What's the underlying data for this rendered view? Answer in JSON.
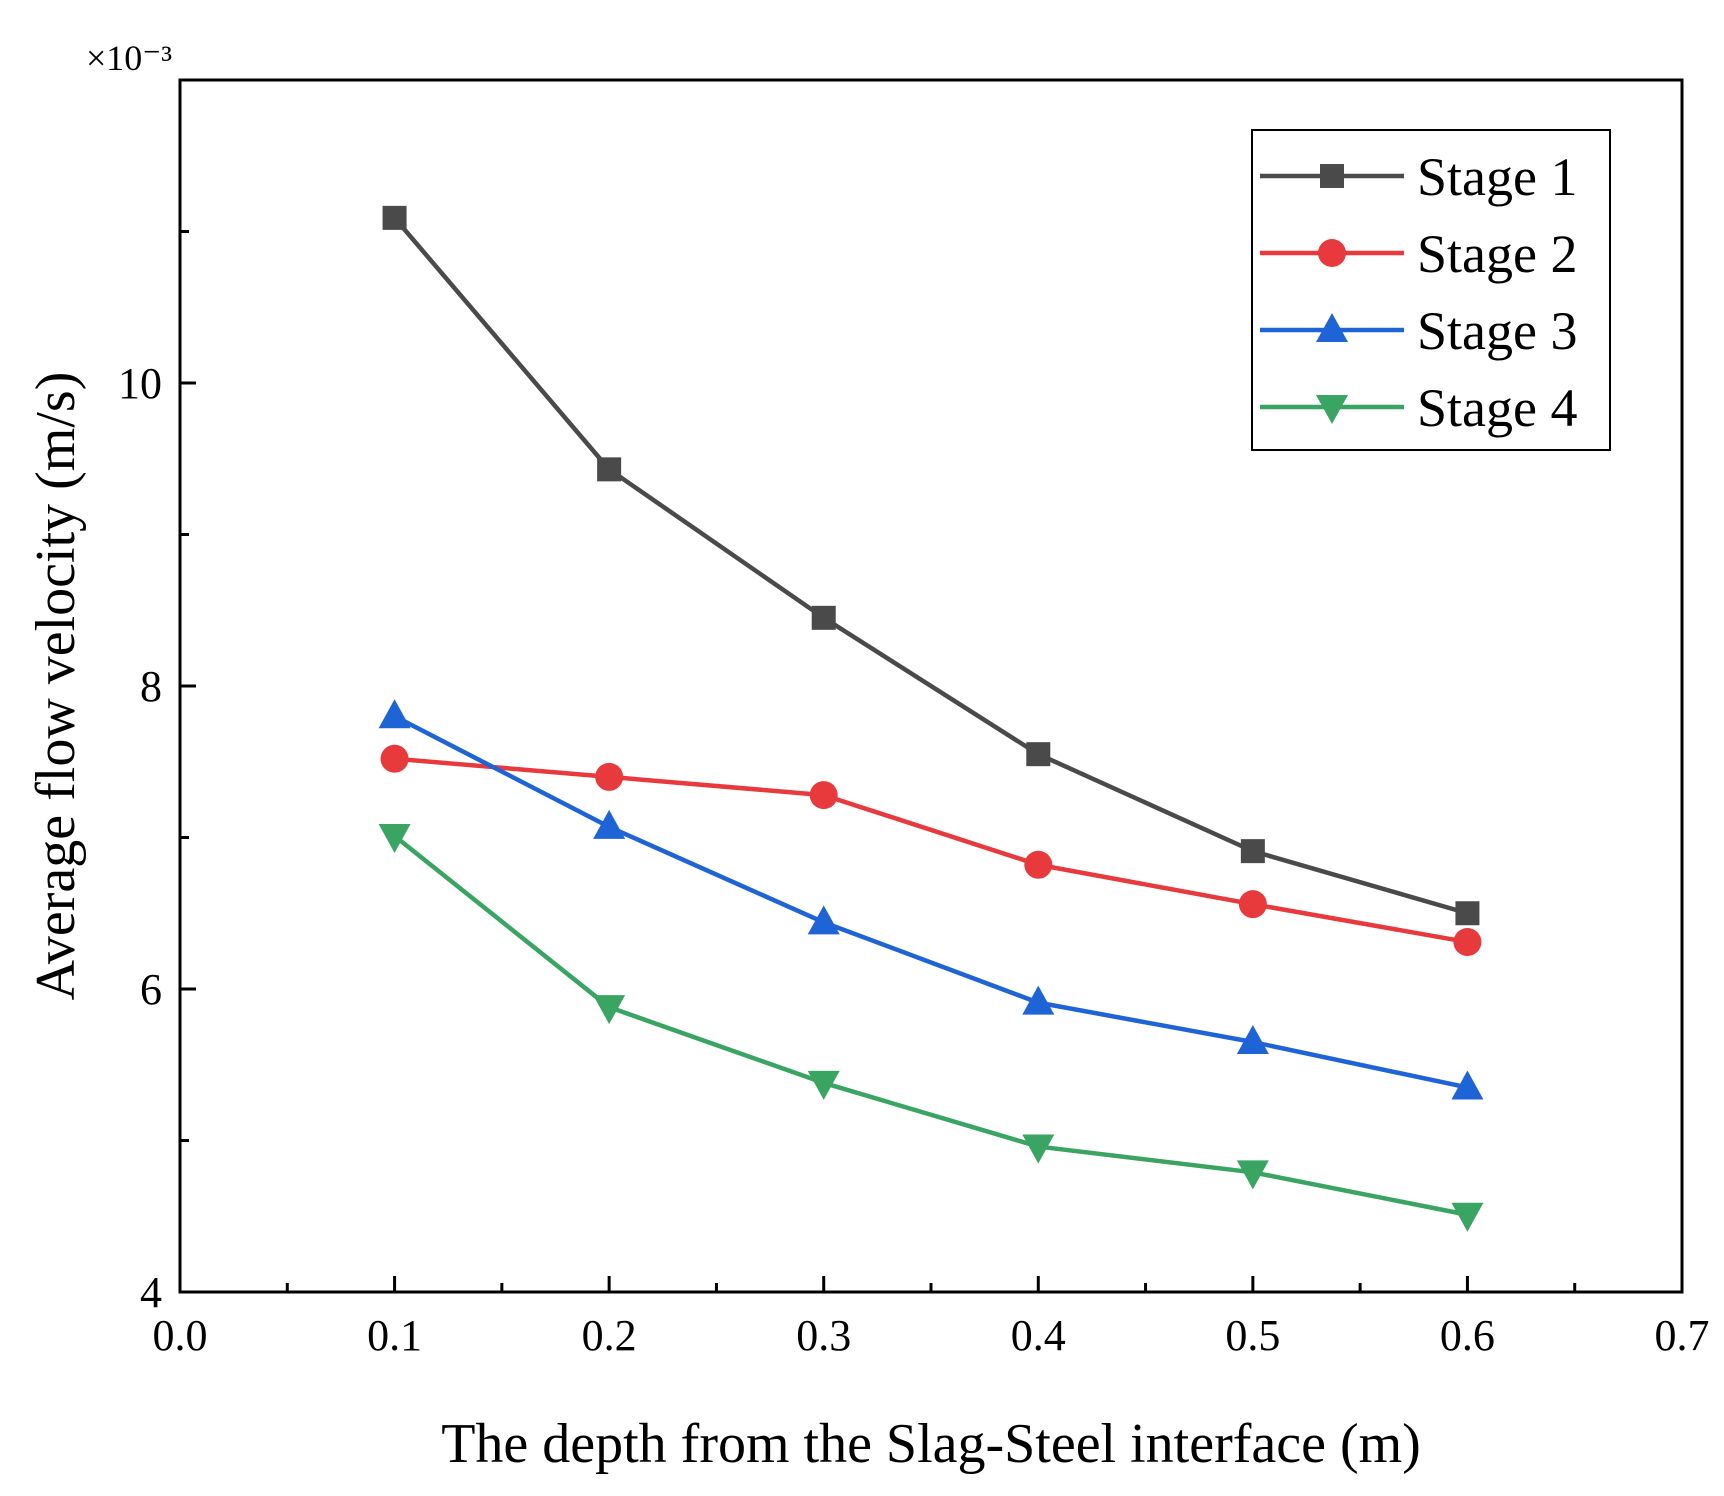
{
  "chart_data": {
    "type": "line",
    "xlabel": "The depth from the Slag-Steel interface (m)",
    "ylabel": "Average flow velocity (m/s)",
    "y_multiplier": "×10⁻³",
    "xlim": [
      0.0,
      0.7
    ],
    "ylim": [
      4,
      12
    ],
    "x_ticks": [
      "0.0",
      "0.1",
      "0.2",
      "0.3",
      "0.4",
      "0.5",
      "0.6",
      "0.7"
    ],
    "y_ticks": [
      "4",
      "6",
      "8",
      "10"
    ],
    "grid": false,
    "legend_position": "top-right",
    "x": [
      0.1,
      0.2,
      0.3,
      0.4,
      0.5,
      0.6
    ],
    "series": [
      {
        "name": "Stage 1",
        "color": "#4a4a4a",
        "marker": "square",
        "values": [
          11.09,
          9.43,
          8.45,
          7.55,
          6.91,
          6.5
        ]
      },
      {
        "name": "Stage 2",
        "color": "#e8393d",
        "marker": "circle",
        "values": [
          7.52,
          7.4,
          7.28,
          6.82,
          6.56,
          6.31
        ]
      },
      {
        "name": "Stage 3",
        "color": "#1f64d6",
        "marker": "triangle-up",
        "values": [
          7.8,
          7.07,
          6.44,
          5.91,
          5.65,
          5.35
        ]
      },
      {
        "name": "Stage 4",
        "color": "#3aa563",
        "marker": "triangle-down",
        "values": [
          7.01,
          5.88,
          5.38,
          4.96,
          4.79,
          4.51
        ]
      }
    ]
  }
}
